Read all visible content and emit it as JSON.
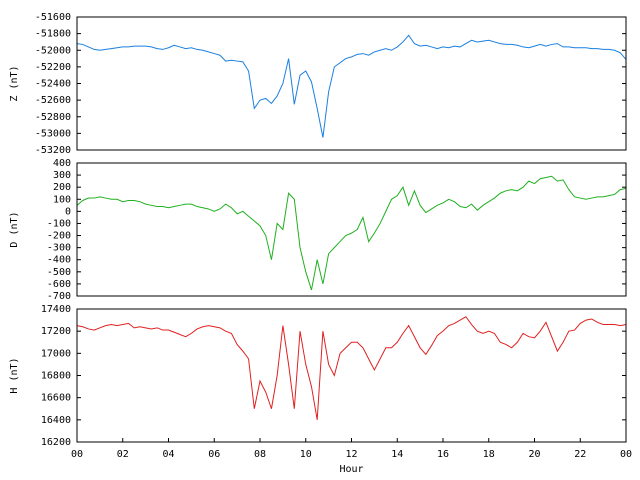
{
  "chart_data": [
    {
      "type": "line",
      "ylabel": "Z (nT)",
      "ylim": [
        -53200,
        -51600
      ],
      "yticks": [
        -51600,
        -51800,
        -52000,
        -52200,
        -52400,
        -52600,
        -52800,
        -53000,
        -53200
      ],
      "xlim": [
        0,
        24
      ],
      "x": [
        0,
        0.25,
        0.5,
        0.75,
        1,
        1.25,
        1.5,
        1.75,
        2,
        2.25,
        2.5,
        2.75,
        3,
        3.25,
        3.5,
        3.75,
        4,
        4.25,
        4.5,
        4.75,
        5,
        5.25,
        5.5,
        5.75,
        6,
        6.25,
        6.5,
        6.75,
        7,
        7.25,
        7.5,
        7.75,
        8,
        8.25,
        8.5,
        8.75,
        9,
        9.25,
        9.5,
        9.75,
        10,
        10.25,
        10.5,
        10.75,
        11,
        11.25,
        11.5,
        11.75,
        12,
        12.25,
        12.5,
        12.75,
        13,
        13.25,
        13.5,
        13.75,
        14,
        14.25,
        14.5,
        14.75,
        15,
        15.25,
        15.5,
        15.75,
        16,
        16.25,
        16.5,
        16.75,
        17,
        17.25,
        17.5,
        17.75,
        18,
        18.25,
        18.5,
        18.75,
        19,
        19.25,
        19.5,
        19.75,
        20,
        20.25,
        20.5,
        20.75,
        21,
        21.25,
        21.5,
        21.75,
        22,
        22.25,
        22.5,
        22.75,
        23,
        23.25,
        23.5,
        23.75,
        24
      ],
      "series": [
        {
          "color": "#1a7fe0",
          "values": [
            -51920,
            -51930,
            -51960,
            -51990,
            -52000,
            -51990,
            -51980,
            -51970,
            -51960,
            -51960,
            -51950,
            -51950,
            -51950,
            -51960,
            -51980,
            -51990,
            -51970,
            -51940,
            -51960,
            -51980,
            -51970,
            -51990,
            -52000,
            -52020,
            -52040,
            -52060,
            -52130,
            -52120,
            -52130,
            -52140,
            -52250,
            -52700,
            -52600,
            -52580,
            -52640,
            -52550,
            -52400,
            -52100,
            -52650,
            -52300,
            -52250,
            -52380,
            -52700,
            -53050,
            -52500,
            -52200,
            -52150,
            -52100,
            -52080,
            -52050,
            -52040,
            -52060,
            -52020,
            -52000,
            -51980,
            -52000,
            -51960,
            -51900,
            -51820,
            -51920,
            -51950,
            -51940,
            -51960,
            -51980,
            -51960,
            -51970,
            -51950,
            -51960,
            -51920,
            -51880,
            -51900,
            -51890,
            -51880,
            -51900,
            -51920,
            -51930,
            -51930,
            -51940,
            -51960,
            -51970,
            -51950,
            -51930,
            -51950,
            -51930,
            -51920,
            -51960,
            -51960,
            -51970,
            -51970,
            -51970,
            -51980,
            -51980,
            -51990,
            -51990,
            -52000,
            -52030,
            -52110
          ]
        }
      ]
    },
    {
      "type": "line",
      "ylabel": "D (nT)",
      "ylim": [
        -700,
        400
      ],
      "yticks": [
        400,
        300,
        200,
        100,
        0,
        -100,
        -200,
        -300,
        -400,
        -500,
        -600,
        -700
      ],
      "xlim": [
        0,
        24
      ],
      "x": [
        0,
        0.25,
        0.5,
        0.75,
        1,
        1.25,
        1.5,
        1.75,
        2,
        2.25,
        2.5,
        2.75,
        3,
        3.25,
        3.5,
        3.75,
        4,
        4.25,
        4.5,
        4.75,
        5,
        5.25,
        5.5,
        5.75,
        6,
        6.25,
        6.5,
        6.75,
        7,
        7.25,
        7.5,
        7.75,
        8,
        8.25,
        8.5,
        8.75,
        9,
        9.25,
        9.5,
        9.75,
        10,
        10.25,
        10.5,
        10.75,
        11,
        11.25,
        11.5,
        11.75,
        12,
        12.25,
        12.5,
        12.75,
        13,
        13.25,
        13.5,
        13.75,
        14,
        14.25,
        14.5,
        14.75,
        15,
        15.25,
        15.5,
        15.75,
        16,
        16.25,
        16.5,
        16.75,
        17,
        17.25,
        17.5,
        17.75,
        18,
        18.25,
        18.5,
        18.75,
        19,
        19.25,
        19.5,
        19.75,
        20,
        20.25,
        20.5,
        20.75,
        21,
        21.25,
        21.5,
        21.75,
        22,
        22.25,
        22.5,
        22.75,
        23,
        23.25,
        23.5,
        23.75,
        24
      ],
      "series": [
        {
          "color": "#20b020",
          "values": [
            50,
            90,
            110,
            110,
            120,
            110,
            100,
            100,
            80,
            90,
            90,
            80,
            60,
            50,
            40,
            40,
            30,
            40,
            50,
            60,
            60,
            40,
            30,
            20,
            0,
            20,
            60,
            30,
            -20,
            0,
            -40,
            -80,
            -120,
            -200,
            -400,
            -100,
            -150,
            150,
            100,
            -300,
            -500,
            -650,
            -400,
            -600,
            -350,
            -300,
            -250,
            -200,
            -180,
            -150,
            -50,
            -250,
            -180,
            -100,
            0,
            100,
            130,
            200,
            50,
            170,
            50,
            -10,
            20,
            50,
            70,
            100,
            80,
            40,
            30,
            60,
            10,
            50,
            80,
            110,
            150,
            170,
            180,
            170,
            200,
            250,
            230,
            270,
            280,
            290,
            250,
            260,
            180,
            120,
            110,
            100,
            110,
            120,
            120,
            130,
            140,
            180,
            190
          ]
        }
      ]
    },
    {
      "type": "line",
      "ylabel": "H (nT)",
      "xlabel": "Hour",
      "ylim": [
        16200,
        17400
      ],
      "yticks": [
        17400,
        17200,
        17000,
        16800,
        16600,
        16400,
        16200
      ],
      "xlim": [
        0,
        24
      ],
      "xticks": [
        {
          "value": 0,
          "label": "00"
        },
        {
          "value": 2,
          "label": "02"
        },
        {
          "value": 4,
          "label": "04"
        },
        {
          "value": 6,
          "label": "06"
        },
        {
          "value": 8,
          "label": "08"
        },
        10,
        12,
        14,
        16,
        18,
        20,
        22,
        {
          "value": 24,
          "label": "00"
        }
      ],
      "x": [
        0,
        0.25,
        0.5,
        0.75,
        1,
        1.25,
        1.5,
        1.75,
        2,
        2.25,
        2.5,
        2.75,
        3,
        3.25,
        3.5,
        3.75,
        4,
        4.25,
        4.5,
        4.75,
        5,
        5.25,
        5.5,
        5.75,
        6,
        6.25,
        6.5,
        6.75,
        7,
        7.25,
        7.5,
        7.75,
        8,
        8.25,
        8.5,
        8.75,
        9,
        9.25,
        9.5,
        9.75,
        10,
        10.25,
        10.5,
        10.75,
        11,
        11.25,
        11.5,
        11.75,
        12,
        12.25,
        12.5,
        12.75,
        13,
        13.25,
        13.5,
        13.75,
        14,
        14.25,
        14.5,
        14.75,
        15,
        15.25,
        15.5,
        15.75,
        16,
        16.25,
        16.5,
        16.75,
        17,
        17.25,
        17.5,
        17.75,
        18,
        18.25,
        18.5,
        18.75,
        19,
        19.25,
        19.5,
        19.75,
        20,
        20.25,
        20.5,
        20.75,
        21,
        21.25,
        21.5,
        21.75,
        22,
        22.25,
        22.5,
        22.75,
        23,
        23.25,
        23.5,
        23.75,
        24
      ],
      "series": [
        {
          "color": "#e02020",
          "values": [
            17250,
            17240,
            17220,
            17210,
            17230,
            17250,
            17260,
            17250,
            17260,
            17270,
            17230,
            17240,
            17230,
            17220,
            17230,
            17210,
            17210,
            17190,
            17170,
            17150,
            17180,
            17220,
            17240,
            17250,
            17240,
            17230,
            17200,
            17180,
            17080,
            17020,
            16950,
            16500,
            16750,
            16650,
            16500,
            16800,
            17250,
            16900,
            16500,
            17200,
            16900,
            16700,
            16400,
            17200,
            16900,
            16800,
            17000,
            17050,
            17100,
            17100,
            17050,
            16950,
            16850,
            16950,
            17050,
            17050,
            17100,
            17180,
            17250,
            17150,
            17050,
            16990,
            17070,
            17160,
            17200,
            17250,
            17270,
            17300,
            17330,
            17260,
            17200,
            17180,
            17200,
            17180,
            17100,
            17080,
            17050,
            17100,
            17180,
            17150,
            17140,
            17200,
            17280,
            17150,
            17020,
            17100,
            17200,
            17210,
            17270,
            17300,
            17310,
            17280,
            17260,
            17260,
            17260,
            17250,
            17260
          ]
        }
      ]
    }
  ]
}
